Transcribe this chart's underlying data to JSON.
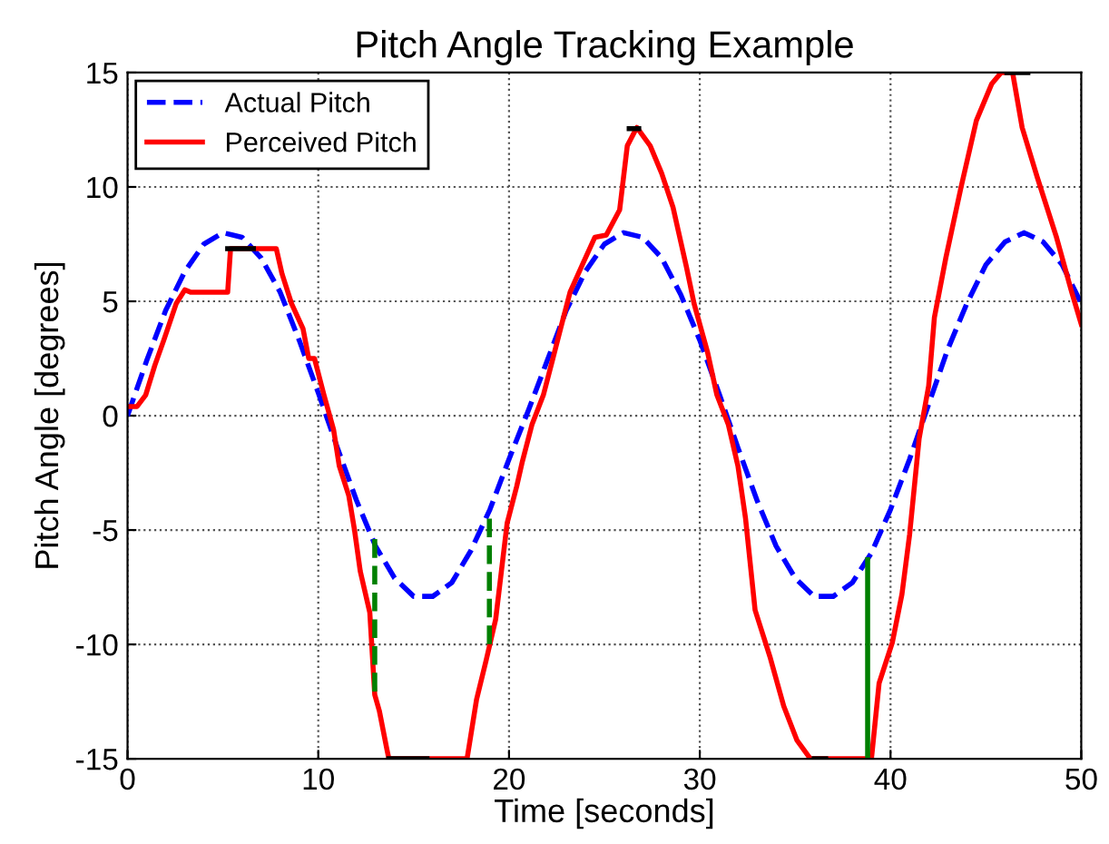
{
  "chart_data": {
    "type": "line",
    "title": "Pitch Angle Tracking Example",
    "xlabel": "Time [seconds]",
    "ylabel": "Pitch Angle [degrees]",
    "xlim": [
      0,
      50
    ],
    "ylim": [
      -15,
      15
    ],
    "xticks": [
      0,
      10,
      20,
      30,
      40,
      50
    ],
    "yticks": [
      -15,
      -10,
      -5,
      0,
      5,
      10,
      15
    ],
    "grid": true,
    "legend": "top left",
    "series": [
      {
        "name": "Actual Pitch",
        "color": "#0000ff",
        "line_style": "dashed",
        "x": [
          0,
          1,
          2,
          3,
          4,
          5,
          6,
          7,
          8,
          9,
          10,
          11,
          12,
          13,
          14,
          15,
          16,
          17,
          18,
          19,
          20,
          21,
          22,
          23,
          24,
          25,
          26,
          27,
          28,
          29,
          30,
          31,
          32,
          33,
          34,
          35,
          36,
          37,
          38,
          39,
          40,
          41,
          42,
          43,
          44,
          45,
          46,
          47,
          48,
          49,
          50
        ],
        "values": [
          0.0,
          2.4,
          4.6,
          6.3,
          7.5,
          8.0,
          7.8,
          6.9,
          5.4,
          3.3,
          1.0,
          -1.4,
          -3.7,
          -5.7,
          -7.1,
          -7.9,
          -7.9,
          -7.3,
          -5.9,
          -4.1,
          -1.9,
          0.2,
          2.4,
          4.6,
          6.3,
          7.5,
          8.0,
          7.8,
          6.9,
          5.3,
          3.3,
          1.0,
          -1.4,
          -3.7,
          -5.7,
          -7.1,
          -7.9,
          -7.9,
          -7.3,
          -6.0,
          -4.1,
          -1.9,
          0.5,
          2.9,
          4.9,
          6.6,
          7.6,
          8.0,
          7.6,
          6.6,
          4.9
        ]
      },
      {
        "name": "Perceived Pitch",
        "color": "#ff0000",
        "line_style": "solid",
        "x": [
          0,
          0.5,
          0.95,
          1.43,
          1.9,
          2.55,
          3.0,
          3.3,
          4.13,
          5.25,
          5.4,
          7.8,
          8.1,
          8.6,
          9.2,
          9.5,
          9.8,
          10.3,
          10.8,
          11.1,
          11.6,
          11.9,
          12.2,
          12.7,
          12.96,
          13.2,
          13.6,
          13.7,
          17.8,
          18.3,
          18.8,
          19.3,
          19.6,
          19.9,
          20.4,
          20.7,
          21.2,
          21.8,
          22.3,
          22.7,
          23.2,
          23.9,
          24.5,
          25.1,
          25.8,
          26.2,
          26.7,
          27.4,
          28.0,
          28.6,
          29.3,
          29.7,
          30.4,
          30.9,
          31.5,
          32.0,
          32.4,
          32.9,
          33.7,
          34.4,
          35.1,
          35.8,
          39.0,
          39.4,
          40.1,
          40.6,
          41.0,
          41.5,
          42.0,
          42.3,
          42.9,
          43.7,
          44.5,
          45.3,
          45.8,
          46.4,
          46.9,
          47.7,
          48.7,
          49.5,
          50
        ],
        "values": [
          0.4,
          0.4,
          0.9,
          2.2,
          3.3,
          4.9,
          5.5,
          5.4,
          5.4,
          5.4,
          7.3,
          7.3,
          6.2,
          4.9,
          3.8,
          2.5,
          2.5,
          0.9,
          -0.6,
          -2.2,
          -3.5,
          -5.0,
          -6.8,
          -8.6,
          -12.2,
          -12.9,
          -14.6,
          -15,
          -15,
          -12.4,
          -10.7,
          -8.9,
          -6.8,
          -4.7,
          -3.1,
          -2.0,
          -0.4,
          0.9,
          2.5,
          3.8,
          5.4,
          6.7,
          7.8,
          7.9,
          9.0,
          11.8,
          12.6,
          11.8,
          10.6,
          9.1,
          6.5,
          4.9,
          2.8,
          0.9,
          -0.4,
          -2.2,
          -4.5,
          -8.5,
          -10.6,
          -12.7,
          -14.2,
          -15,
          -15,
          -11.7,
          -9.9,
          -7.8,
          -5.2,
          -1.0,
          1.3,
          4.3,
          6.9,
          10.0,
          12.9,
          14.5,
          15,
          15,
          12.6,
          10.4,
          7.8,
          5.4,
          4.0
        ]
      },
      {
        "color": "#008000",
        "line_style": "dashed",
        "x": [
          12.96,
          12.96
        ],
        "values": [
          -5.4,
          -12.2
        ]
      },
      {
        "color": "#008000",
        "line_style": "dashed",
        "x": [
          18.97,
          18.97
        ],
        "values": [
          -4.5,
          -10.0
        ]
      },
      {
        "color": "#008000",
        "line_style": "solid",
        "x": [
          38.8,
          38.8
        ],
        "values": [
          -6.3,
          -15
        ]
      },
      {
        "color": "#000000",
        "line_style": "solid",
        "x": [
          5.25,
          6.6
        ],
        "values": [
          7.3,
          7.3
        ]
      },
      {
        "color": "#000000",
        "line_style": "solid",
        "x": [
          13.7,
          15.7
        ],
        "values": [
          -15,
          -15
        ]
      },
      {
        "color": "#000000",
        "line_style": "solid",
        "x": [
          26.3,
          26.8
        ],
        "values": [
          12.55,
          12.55
        ]
      },
      {
        "color": "#000000",
        "line_style": "solid",
        "x": [
          36.0,
          36.6
        ],
        "values": [
          -15,
          -15
        ]
      },
      {
        "color": "#000000",
        "line_style": "solid",
        "x": [
          46.1,
          47.2
        ],
        "values": [
          15,
          15
        ]
      }
    ]
  }
}
